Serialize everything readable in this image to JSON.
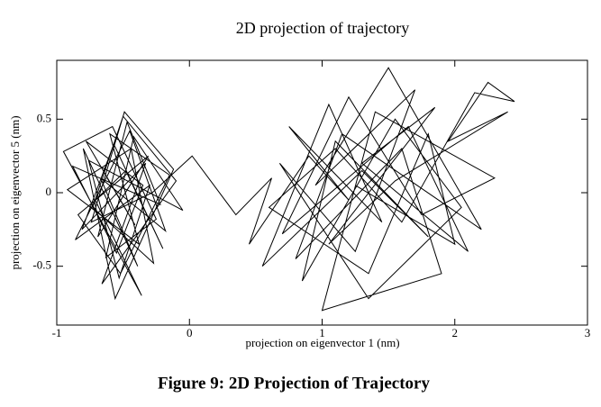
{
  "chart_data": {
    "type": "line",
    "title": "2D projection of trajectory",
    "x_label": "projection on eigenvector 1 (nm)",
    "y_label": "projection on eigenvector 5 (nm)",
    "caption": "Figure 9: 2D Projection of Trajectory",
    "xlim": [
      -1,
      3
    ],
    "ylim": [
      -0.9,
      0.9
    ],
    "xticks": [
      -1,
      0,
      1,
      2,
      3
    ],
    "yticks": [
      -0.5,
      0,
      0.5
    ],
    "color": "#000000",
    "x": [
      -0.62,
      -0.41,
      -0.78,
      -0.35,
      -0.55,
      -0.88,
      -0.22,
      -0.47,
      -0.69,
      -0.31,
      -0.84,
      -0.52,
      -0.15,
      -0.6,
      -0.38,
      -0.92,
      -0.44,
      -0.27,
      -0.73,
      -0.5,
      -0.1,
      -0.66,
      -0.33,
      -0.81,
      -0.57,
      -0.2,
      -0.48,
      -0.71,
      -0.36,
      -0.95,
      -0.58,
      -0.25,
      -0.63,
      -0.42,
      -0.05,
      -0.76,
      -0.53,
      -0.3,
      -0.86,
      -0.45,
      -0.18,
      -0.67,
      -0.39,
      -0.8,
      -0.56,
      -0.12,
      -0.49,
      -0.74,
      -0.28,
      0.02,
      0.35,
      0.62,
      0.45,
      0.9,
      1.2,
      0.75,
      1.45,
      1.05,
      0.55,
      1.3,
      1.8,
      1.1,
      0.85,
      1.55,
      2.05,
      1.35,
      0.68,
      1.25,
      1.7,
      0.95,
      1.5,
      2.2,
      1.15,
      0.8,
      1.6,
      1.9,
      1.0,
      1.4,
      2.3,
      1.75,
      1.2,
      0.7,
      1.65,
      2.1,
      1.3,
      1.85,
      1.05,
      1.55,
      2.4,
      1.95,
      2.25,
      2.45,
      2.15,
      1.6,
      1.1,
      0.6,
      1.35,
      1.8,
      2.0,
      1.25
    ],
    "values": [
      0.1,
      -0.22,
      0.35,
      0.05,
      -0.41,
      0.18,
      -0.08,
      0.48,
      -0.3,
      0.25,
      -0.15,
      -0.55,
      0.12,
      0.4,
      -0.35,
      0.02,
      0.3,
      -0.48,
      -0.1,
      0.52,
      0.08,
      -0.62,
      0.2,
      -0.25,
      0.33,
      -0.38,
      0.15,
      -0.05,
      -0.7,
      0.28,
      0.45,
      -0.18,
      -0.44,
      0.38,
      -0.12,
      0.22,
      -0.58,
      0.05,
      -0.32,
      0.42,
      -0.26,
      0.1,
      -0.5,
      0.3,
      -0.72,
      0.16,
      0.55,
      -0.2,
      0.0,
      0.25,
      -0.15,
      0.1,
      -0.35,
      0.25,
      -0.05,
      0.45,
      -0.2,
      0.6,
      -0.5,
      0.15,
      -0.3,
      0.35,
      -0.6,
      0.5,
      -0.1,
      -0.72,
      0.2,
      -0.4,
      0.7,
      0.05,
      0.85,
      -0.25,
      0.4,
      -0.45,
      0.3,
      -0.55,
      -0.8,
      0.55,
      0.1,
      -0.15,
      0.65,
      -0.28,
      0.45,
      -0.4,
      0.2,
      0.58,
      -0.35,
      0.08,
      0.55,
      0.35,
      0.75,
      0.62,
      0.68,
      -0.2,
      0.3,
      -0.1,
      -0.55,
      0.4,
      -0.35,
      0.05
    ]
  }
}
